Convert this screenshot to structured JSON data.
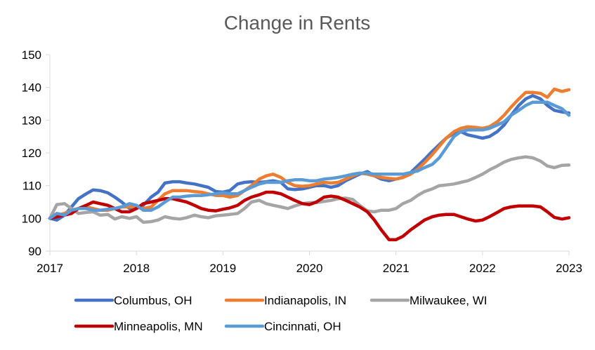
{
  "chart_data": {
    "type": "line",
    "title": "Change in Rents",
    "xlabel": "",
    "ylabel": "",
    "xlim": [
      2017,
      2023
    ],
    "ylim": [
      90,
      150
    ],
    "yticks": [
      90,
      100,
      110,
      120,
      130,
      140,
      150
    ],
    "xticks": [
      2017,
      2018,
      2019,
      2020,
      2021,
      2022,
      2023
    ],
    "grid": false,
    "legend_position": "bottom",
    "series": [
      {
        "name": "Columbus, OH",
        "color": "#4472C4",
        "x": [
          2017.0,
          2017.08,
          2017.17,
          2017.25,
          2017.33,
          2017.42,
          2017.5,
          2017.58,
          2017.67,
          2017.75,
          2017.83,
          2017.92,
          2018.0,
          2018.08,
          2018.17,
          2018.25,
          2018.33,
          2018.42,
          2018.5,
          2018.58,
          2018.67,
          2018.75,
          2018.83,
          2018.92,
          2019.0,
          2019.08,
          2019.17,
          2019.25,
          2019.33,
          2019.42,
          2019.5,
          2019.58,
          2019.67,
          2019.75,
          2019.83,
          2019.92,
          2020.0,
          2020.08,
          2020.17,
          2020.25,
          2020.33,
          2020.42,
          2020.5,
          2020.58,
          2020.67,
          2020.75,
          2020.83,
          2020.92,
          2021.0,
          2021.08,
          2021.17,
          2021.25,
          2021.33,
          2021.42,
          2021.5,
          2021.58,
          2021.67,
          2021.75,
          2021.83,
          2021.92,
          2022.0,
          2022.08,
          2022.17,
          2022.25,
          2022.33,
          2022.42,
          2022.5,
          2022.58,
          2022.67,
          2022.75,
          2022.83,
          2022.92,
          2023.0
        ],
        "y": [
          100,
          99.5,
          101,
          103.5,
          106,
          107.5,
          108.7,
          108.5,
          107.8,
          106.5,
          105,
          103,
          103,
          104,
          106.5,
          108,
          110.8,
          111.2,
          111.2,
          110.8,
          110.5,
          110,
          109.5,
          108.2,
          108,
          108.5,
          110.5,
          111,
          111.2,
          111,
          111.2,
          111.5,
          111,
          109,
          108.8,
          109,
          109.5,
          110,
          110,
          109.5,
          110,
          111.5,
          112.5,
          113.5,
          114.3,
          113,
          112,
          111.5,
          112,
          112.5,
          114,
          116,
          118,
          120.5,
          122.5,
          124.5,
          126,
          126.5,
          125.5,
          125,
          124.5,
          125,
          126.5,
          128.5,
          131.5,
          134.5,
          136.5,
          137.5,
          136.5,
          134.5,
          133,
          132.5,
          132.2
        ]
      },
      {
        "name": "Indianapolis, IN",
        "color": "#ED7D31",
        "x": [
          2017.0,
          2017.08,
          2017.17,
          2017.25,
          2017.33,
          2017.42,
          2017.5,
          2017.58,
          2017.67,
          2017.75,
          2017.83,
          2017.92,
          2018.0,
          2018.08,
          2018.17,
          2018.25,
          2018.33,
          2018.42,
          2018.5,
          2018.58,
          2018.67,
          2018.75,
          2018.83,
          2018.92,
          2019.0,
          2019.08,
          2019.17,
          2019.25,
          2019.33,
          2019.42,
          2019.5,
          2019.58,
          2019.67,
          2019.75,
          2019.83,
          2019.92,
          2020.0,
          2020.08,
          2020.17,
          2020.25,
          2020.33,
          2020.42,
          2020.5,
          2020.58,
          2020.67,
          2020.75,
          2020.83,
          2020.92,
          2021.0,
          2021.08,
          2021.17,
          2021.25,
          2021.33,
          2021.42,
          2021.5,
          2021.58,
          2021.67,
          2021.75,
          2021.83,
          2021.92,
          2022.0,
          2022.08,
          2022.17,
          2022.25,
          2022.33,
          2022.42,
          2022.5,
          2022.58,
          2022.67,
          2022.75,
          2022.83,
          2022.92,
          2023.0
        ],
        "y": [
          100,
          101,
          101.5,
          102.5,
          103,
          103.5,
          103,
          102.5,
          102.5,
          103,
          103.5,
          103.5,
          103.5,
          103,
          103.5,
          105.5,
          107.5,
          108.5,
          108.5,
          108.5,
          108.2,
          108,
          107.5,
          107,
          107,
          106.5,
          107,
          108.5,
          110,
          112,
          113,
          113.5,
          112.5,
          111,
          110,
          109.8,
          110,
          110.5,
          111,
          110.8,
          111,
          112,
          113,
          113.8,
          113.5,
          113,
          112.5,
          112.2,
          112,
          112.5,
          113.5,
          115,
          117,
          119.5,
          122,
          124.5,
          126.5,
          127.5,
          128,
          127.8,
          127.5,
          128,
          129.5,
          131.5,
          134,
          136.5,
          138.5,
          138.5,
          138.2,
          137,
          139.5,
          138.8,
          139.3
        ]
      },
      {
        "name": "Milwaukee, WI",
        "color": "#A5A5A5",
        "x": [
          2017.0,
          2017.08,
          2017.17,
          2017.25,
          2017.33,
          2017.42,
          2017.5,
          2017.58,
          2017.67,
          2017.75,
          2017.83,
          2017.92,
          2018.0,
          2018.08,
          2018.17,
          2018.25,
          2018.33,
          2018.42,
          2018.5,
          2018.58,
          2018.67,
          2018.75,
          2018.83,
          2018.92,
          2019.0,
          2019.08,
          2019.17,
          2019.25,
          2019.33,
          2019.42,
          2019.5,
          2019.58,
          2019.67,
          2019.75,
          2019.83,
          2019.92,
          2020.0,
          2020.08,
          2020.17,
          2020.25,
          2020.33,
          2020.42,
          2020.5,
          2020.58,
          2020.67,
          2020.75,
          2020.83,
          2020.92,
          2021.0,
          2021.08,
          2021.17,
          2021.25,
          2021.33,
          2021.42,
          2021.5,
          2021.58,
          2021.67,
          2021.75,
          2021.83,
          2021.92,
          2022.0,
          2022.08,
          2022.17,
          2022.25,
          2022.33,
          2022.42,
          2022.5,
          2022.58,
          2022.67,
          2022.75,
          2022.83,
          2022.92,
          2023.0
        ],
        "y": [
          100,
          104.2,
          104.5,
          103,
          101.5,
          101.8,
          102,
          101,
          101.2,
          99.8,
          100.5,
          100,
          100.5,
          98.8,
          99,
          99.5,
          100.5,
          100,
          99.8,
          100.2,
          101,
          100.5,
          100.2,
          100.8,
          101,
          101.2,
          101.5,
          103,
          105,
          105.5,
          104.5,
          104,
          103.5,
          103,
          103.8,
          104.5,
          104.8,
          104.8,
          105.2,
          105.5,
          106,
          106.2,
          105.8,
          104,
          102.3,
          102,
          102.5,
          102.5,
          103,
          104.5,
          105.5,
          107,
          108.2,
          109,
          110,
          110.2,
          110.5,
          111,
          111.5,
          112.5,
          113.5,
          114.8,
          116,
          117.2,
          118,
          118.5,
          118.8,
          118.5,
          117.5,
          116,
          115.5,
          116.2,
          116.3
        ]
      },
      {
        "name": "Minneapolis, MN",
        "color": "#C00000",
        "x": [
          2017.0,
          2017.08,
          2017.17,
          2017.25,
          2017.33,
          2017.42,
          2017.5,
          2017.58,
          2017.67,
          2017.75,
          2017.83,
          2017.92,
          2018.0,
          2018.08,
          2018.17,
          2018.25,
          2018.33,
          2018.42,
          2018.5,
          2018.58,
          2018.67,
          2018.75,
          2018.83,
          2018.92,
          2019.0,
          2019.08,
          2019.17,
          2019.25,
          2019.33,
          2019.42,
          2019.5,
          2019.58,
          2019.67,
          2019.75,
          2019.83,
          2019.92,
          2020.0,
          2020.08,
          2020.17,
          2020.25,
          2020.33,
          2020.42,
          2020.5,
          2020.58,
          2020.67,
          2020.75,
          2020.83,
          2020.92,
          2021.0,
          2021.08,
          2021.17,
          2021.25,
          2021.33,
          2021.42,
          2021.5,
          2021.58,
          2021.67,
          2021.75,
          2021.83,
          2021.92,
          2022.0,
          2022.08,
          2022.17,
          2022.25,
          2022.33,
          2022.42,
          2022.5,
          2022.58,
          2022.67,
          2022.75,
          2022.83,
          2022.92,
          2023.0
        ],
        "y": [
          100,
          100.5,
          101,
          101.5,
          103,
          104,
          105,
          104.5,
          104,
          103,
          102,
          102,
          103,
          104.5,
          105,
          105.5,
          106,
          106,
          105.5,
          105,
          104,
          103,
          102.5,
          102.3,
          102.8,
          103.2,
          104,
          105.5,
          106.5,
          107.2,
          108,
          108,
          107.5,
          106.5,
          105.5,
          104.5,
          104.2,
          105,
          106.5,
          106.8,
          106.5,
          105.5,
          104.5,
          103.5,
          102,
          99.5,
          96.5,
          93.5,
          93.5,
          94.5,
          96.5,
          98,
          99.5,
          100.5,
          101,
          101.2,
          101.2,
          100.5,
          99.8,
          99.2,
          99.5,
          100.5,
          101.8,
          103,
          103.5,
          103.8,
          103.8,
          103.8,
          103.5,
          102,
          100.3,
          99.8,
          100.2
        ]
      },
      {
        "name": "Cincinnati, OH",
        "color": "#5B9BD5",
        "x": [
          2017.0,
          2017.08,
          2017.17,
          2017.25,
          2017.33,
          2017.42,
          2017.5,
          2017.58,
          2017.67,
          2017.75,
          2017.83,
          2017.92,
          2018.0,
          2018.08,
          2018.17,
          2018.25,
          2018.33,
          2018.42,
          2018.5,
          2018.58,
          2018.67,
          2018.75,
          2018.83,
          2018.92,
          2019.0,
          2019.08,
          2019.17,
          2019.25,
          2019.33,
          2019.42,
          2019.5,
          2019.58,
          2019.67,
          2019.75,
          2019.83,
          2019.92,
          2020.0,
          2020.08,
          2020.17,
          2020.25,
          2020.33,
          2020.42,
          2020.5,
          2020.58,
          2020.67,
          2020.75,
          2020.83,
          2020.92,
          2021.0,
          2021.08,
          2021.17,
          2021.25,
          2021.33,
          2021.42,
          2021.5,
          2021.58,
          2021.67,
          2021.75,
          2021.83,
          2021.92,
          2022.0,
          2022.08,
          2022.17,
          2022.25,
          2022.33,
          2022.42,
          2022.5,
          2022.58,
          2022.67,
          2022.75,
          2022.83,
          2022.92,
          2023.0
        ],
        "y": [
          100,
          101.5,
          101,
          102.5,
          103,
          103,
          102.5,
          102.5,
          102.8,
          103,
          103.5,
          104.5,
          104,
          102.5,
          102.5,
          103.5,
          105,
          106.5,
          106.5,
          106.8,
          107,
          107,
          107.2,
          107.5,
          107.8,
          107.5,
          107.5,
          108.5,
          109.5,
          110.5,
          111,
          111,
          111,
          111.5,
          111.8,
          111.8,
          111.5,
          111.5,
          112,
          112.2,
          112.5,
          113,
          113.5,
          113.8,
          113.8,
          113.5,
          113.5,
          113.5,
          113.5,
          113.5,
          114,
          114.5,
          115.5,
          116.5,
          118.5,
          121.5,
          125,
          126.5,
          127,
          127,
          127,
          127.5,
          128.5,
          129.5,
          131.5,
          133,
          134.5,
          135.5,
          135.5,
          135.5,
          134.5,
          133.5,
          131.5
        ]
      }
    ]
  }
}
